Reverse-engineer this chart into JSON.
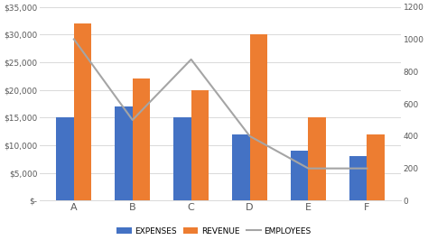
{
  "categories": [
    "A",
    "B",
    "C",
    "D",
    "E",
    "F"
  ],
  "expenses": [
    15000,
    17000,
    15000,
    12000,
    9000,
    8000
  ],
  "revenue": [
    32000,
    22000,
    20000,
    30000,
    15000,
    12000
  ],
  "employees": [
    1000,
    500,
    875,
    400,
    200,
    200
  ],
  "bar_color_expenses": "#4472C4",
  "bar_color_revenue": "#ED7D31",
  "line_color_employees": "#A5A5A5",
  "ylim_left": [
    0,
    35000
  ],
  "ylim_right": [
    0,
    1200
  ],
  "yticks_left": [
    0,
    5000,
    10000,
    15000,
    20000,
    25000,
    30000,
    35000
  ],
  "yticks_right": [
    0,
    200,
    400,
    600,
    800,
    1000,
    1200
  ],
  "ytick_labels_left": [
    "$-",
    "$5,000",
    "$10,000",
    "$15,000",
    "$20,000",
    "$25,000",
    "$30,000",
    "$35,000"
  ],
  "ytick_labels_right": [
    "0",
    "200",
    "400",
    "600",
    "800",
    "1000",
    "1200"
  ],
  "legend_labels": [
    "EXPENSES",
    "REVENUE",
    "EMPLOYEES"
  ],
  "background_color": "#FFFFFF",
  "grid_color": "#D9D9D9",
  "bar_width": 0.3,
  "title": ""
}
